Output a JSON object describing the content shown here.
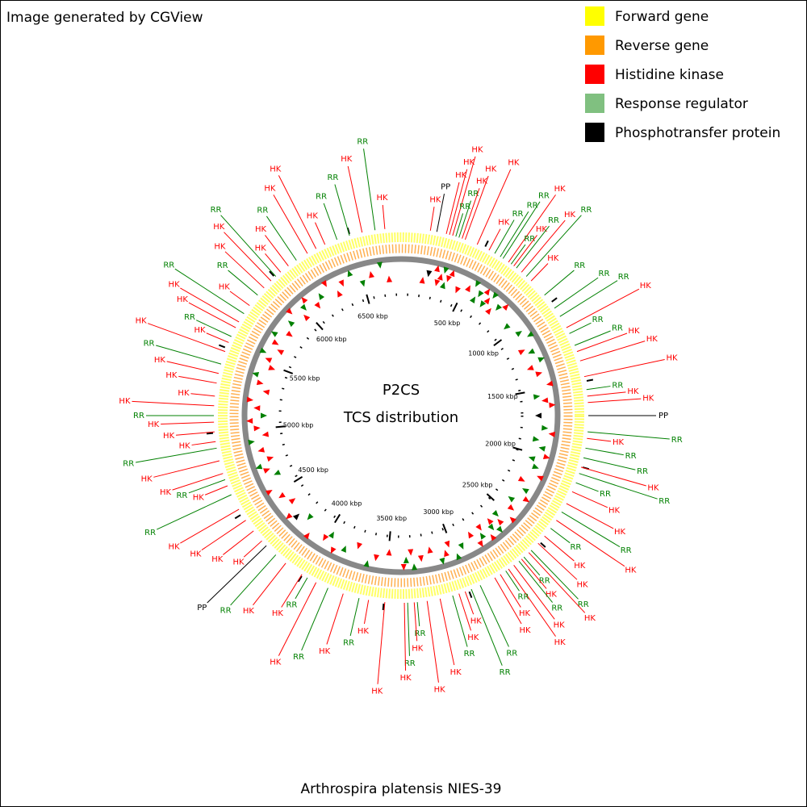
{
  "header": {
    "credit": "Image generated by CGView"
  },
  "center": {
    "title": "P2CS",
    "subtitle": "TCS distribution"
  },
  "footer": {
    "organism": "Arthrospira platensis NIES-39"
  },
  "legend": [
    {
      "label": "Forward gene",
      "color": "#ffff00"
    },
    {
      "label": "Reverse gene",
      "color": "#ff9900"
    },
    {
      "label": "Histidine kinase",
      "color": "#ff0000"
    },
    {
      "label": "Response regulator",
      "color": "#80c080"
    },
    {
      "label": "Phosphotransfer protein",
      "color": "#000000"
    }
  ],
  "feature_colors": {
    "HK": "#ff0000",
    "RR": "#008000",
    "PP": "#000000"
  },
  "lim": [
    0,
    6800
  ],
  "ticks": [
    {
      "value": 500,
      "label": "500 kbp"
    },
    {
      "value": 1000,
      "label": "1000 kbp"
    },
    {
      "value": 1500,
      "label": "1500 kbp"
    },
    {
      "value": 2000,
      "label": "2000 kbp"
    },
    {
      "value": 2500,
      "label": "2500 kbp"
    },
    {
      "value": 3000,
      "label": "3000 kbp"
    },
    {
      "value": 3500,
      "label": "3500 kbp"
    },
    {
      "value": 4000,
      "label": "4000 kbp"
    },
    {
      "value": 4500,
      "label": "4500 kbp"
    },
    {
      "value": 5000,
      "label": "5000 kbp"
    },
    {
      "value": 5500,
      "label": "5500 kbp"
    },
    {
      "value": 6000,
      "label": "6000 kbp"
    },
    {
      "value": 6500,
      "label": "6500 kbp"
    }
  ],
  "features": [
    {
      "label": "HK",
      "kbp": 170
    },
    {
      "label": "PP",
      "kbp": 208
    },
    {
      "label": "HK",
      "kbp": 264
    },
    {
      "label": "HK",
      "kbp": 283
    },
    {
      "label": "HK",
      "kbp": 302
    },
    {
      "label": "RR",
      "kbp": 321
    },
    {
      "label": "RR",
      "kbp": 340
    },
    {
      "label": "HK",
      "kbp": 359
    },
    {
      "label": "HK",
      "kbp": 378
    },
    {
      "label": "HK",
      "kbp": 453
    },
    {
      "label": "HK",
      "kbp": 529
    },
    {
      "label": "RR",
      "kbp": 567
    },
    {
      "label": "RR",
      "kbp": 604
    },
    {
      "label": "RR",
      "kbp": 623
    },
    {
      "label": "HK",
      "kbp": 661
    },
    {
      "label": "RR",
      "kbp": 680
    },
    {
      "label": "HK",
      "kbp": 699
    },
    {
      "label": "RR",
      "kbp": 718
    },
    {
      "label": "HK",
      "kbp": 756
    },
    {
      "label": "RR",
      "kbp": 793
    },
    {
      "label": "HK",
      "kbp": 831
    },
    {
      "label": "RR",
      "kbp": 944
    },
    {
      "label": "RR",
      "kbp": 1039
    },
    {
      "label": "RR",
      "kbp": 1096
    },
    {
      "label": "HK",
      "kbp": 1171
    },
    {
      "label": "RR",
      "kbp": 1209
    },
    {
      "label": "RR",
      "kbp": 1284
    },
    {
      "label": "HK",
      "kbp": 1322
    },
    {
      "label": "HK",
      "kbp": 1379
    },
    {
      "label": "HK",
      "kbp": 1473
    },
    {
      "label": "RR",
      "kbp": 1549
    },
    {
      "label": "HK",
      "kbp": 1587
    },
    {
      "label": "HK",
      "kbp": 1624
    },
    {
      "label": "PP",
      "kbp": 1700
    },
    {
      "label": "RR",
      "kbp": 1794
    },
    {
      "label": "HK",
      "kbp": 1832
    },
    {
      "label": "RR",
      "kbp": 1889
    },
    {
      "label": "RR",
      "kbp": 1946
    },
    {
      "label": "HK",
      "kbp": 2002
    },
    {
      "label": "RR",
      "kbp": 2040
    },
    {
      "label": "RR",
      "kbp": 2097
    },
    {
      "label": "HK",
      "kbp": 2153
    },
    {
      "label": "HK",
      "kbp": 2229
    },
    {
      "label": "RR",
      "kbp": 2285
    },
    {
      "label": "HK",
      "kbp": 2342
    },
    {
      "label": "RR",
      "kbp": 2399
    },
    {
      "label": "HK",
      "kbp": 2456
    },
    {
      "label": "HK",
      "kbp": 2512
    },
    {
      "label": "RR",
      "kbp": 2569
    },
    {
      "label": "HK",
      "kbp": 2588
    },
    {
      "label": "RR",
      "kbp": 2626
    },
    {
      "label": "HK",
      "kbp": 2644
    },
    {
      "label": "RR",
      "kbp": 2663
    },
    {
      "label": "HK",
      "kbp": 2701
    },
    {
      "label": "HK",
      "kbp": 2739
    },
    {
      "label": "RR",
      "kbp": 2758
    },
    {
      "label": "HK",
      "kbp": 2796
    },
    {
      "label": "HK",
      "kbp": 2833
    },
    {
      "label": "RR",
      "kbp": 2928
    },
    {
      "label": "RR",
      "kbp": 2984
    },
    {
      "label": "HK",
      "kbp": 3022
    },
    {
      "label": "HK",
      "kbp": 3060
    },
    {
      "label": "RR",
      "kbp": 3098
    },
    {
      "label": "HK",
      "kbp": 3173
    },
    {
      "label": "HK",
      "kbp": 3249
    },
    {
      "label": "RR",
      "kbp": 3306
    },
    {
      "label": "HK",
      "kbp": 3324
    },
    {
      "label": "RR",
      "kbp": 3362
    },
    {
      "label": "HK",
      "kbp": 3381
    },
    {
      "label": "HK",
      "kbp": 3494
    },
    {
      "label": "HK",
      "kbp": 3589
    },
    {
      "label": "RR",
      "kbp": 3645
    },
    {
      "label": "HK",
      "kbp": 3740
    },
    {
      "label": "RR",
      "kbp": 3834
    },
    {
      "label": "HK",
      "kbp": 3910
    },
    {
      "label": "RR",
      "kbp": 3967
    },
    {
      "label": "HK",
      "kbp": 4004
    },
    {
      "label": "HK",
      "kbp": 4118
    },
    {
      "label": "RR",
      "kbp": 4193
    },
    {
      "label": "PP",
      "kbp": 4269
    },
    {
      "label": "HK",
      "kbp": 4307
    },
    {
      "label": "HK",
      "kbp": 4382
    },
    {
      "label": "HK",
      "kbp": 4458
    },
    {
      "label": "HK",
      "kbp": 4533
    },
    {
      "label": "RR",
      "kbp": 4628
    },
    {
      "label": "HK",
      "kbp": 4684
    },
    {
      "label": "RR",
      "kbp": 4722
    },
    {
      "label": "HK",
      "kbp": 4760
    },
    {
      "label": "HK",
      "kbp": 4836
    },
    {
      "label": "RR",
      "kbp": 4911
    },
    {
      "label": "HK",
      "kbp": 4949
    },
    {
      "label": "HK",
      "kbp": 5006
    },
    {
      "label": "HK",
      "kbp": 5062
    },
    {
      "label": "RR",
      "kbp": 5100
    },
    {
      "label": "HK",
      "kbp": 5157
    },
    {
      "label": "HK",
      "kbp": 5213
    },
    {
      "label": "HK",
      "kbp": 5289
    },
    {
      "label": "HK",
      "kbp": 5346
    },
    {
      "label": "RR",
      "kbp": 5402
    },
    {
      "label": "HK",
      "kbp": 5478
    },
    {
      "label": "HK",
      "kbp": 5534
    },
    {
      "label": "RR",
      "kbp": 5572
    },
    {
      "label": "HK",
      "kbp": 5629
    },
    {
      "label": "HK",
      "kbp": 5667
    },
    {
      "label": "RR",
      "kbp": 5723
    },
    {
      "label": "HK",
      "kbp": 5780
    },
    {
      "label": "RR",
      "kbp": 5856
    },
    {
      "label": "HK",
      "kbp": 5912
    },
    {
      "label": "HK",
      "kbp": 5969
    },
    {
      "label": "RR",
      "kbp": 6007
    },
    {
      "label": "HK",
      "kbp": 6044
    },
    {
      "label": "HK",
      "kbp": 6101
    },
    {
      "label": "RR",
      "kbp": 6158
    },
    {
      "label": "HK",
      "kbp": 6233
    },
    {
      "label": "HK",
      "kbp": 6290
    },
    {
      "label": "HK",
      "kbp": 6347
    },
    {
      "label": "RR",
      "kbp": 6422
    },
    {
      "label": "RR",
      "kbp": 6498
    },
    {
      "label": "HK",
      "kbp": 6573
    },
    {
      "label": "RR",
      "kbp": 6649
    },
    {
      "label": "HK",
      "kbp": 6706
    }
  ]
}
